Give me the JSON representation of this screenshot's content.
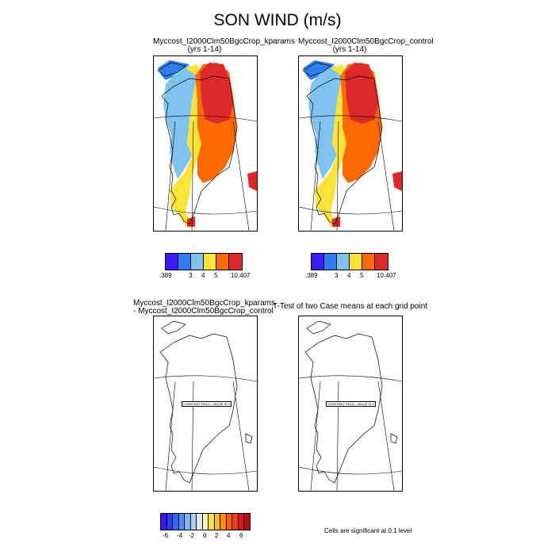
{
  "title": "SON WIND (m/s)",
  "panels": {
    "kparams": {
      "title": "Myccost_I2000Clm50BgcCrop_kparams",
      "years": "(yrs 1-14)"
    },
    "control": {
      "title": "Myccost_I2000Clm50BgcCrop_control",
      "years": "(yrs 1-14)"
    },
    "diff": {
      "title_line1": "Myccost_I2000Clm50BgcCrop_kparams",
      "title_line2": " - Myccost_I2000Clm50BgcCrop_control",
      "constant_label": "CONSTANT FIELD - VALUE IS 0"
    },
    "ttest": {
      "title": "T-Test of two Case means at each grid point",
      "constant_label": "CONSTANT FIELD - VALUE IS 0"
    }
  },
  "colorbar_top": {
    "colors": [
      "#3b1cff",
      "#2e7ef0",
      "#7fc3ef",
      "#fde238",
      "#ff6a00",
      "#dc2a2a"
    ],
    "labels": [
      ".389",
      "3",
      "4",
      "5",
      "10.407"
    ]
  },
  "colorbar_bottom": {
    "colors": [
      "#3c14f0",
      "#2a3cff",
      "#2f68f5",
      "#4f8ff5",
      "#7ab4f5",
      "#a5d2f5",
      "#d8ecf2",
      "#fff7b0",
      "#fde23a",
      "#fdbb2a",
      "#ff9000",
      "#ff6000",
      "#f03a10",
      "#d81818",
      "#b40c14"
    ],
    "labels": [
      "-6",
      "-4",
      "-2",
      "0",
      "2",
      "4",
      "6"
    ]
  },
  "significance_note": "Cells are significant at 0.1 level"
}
